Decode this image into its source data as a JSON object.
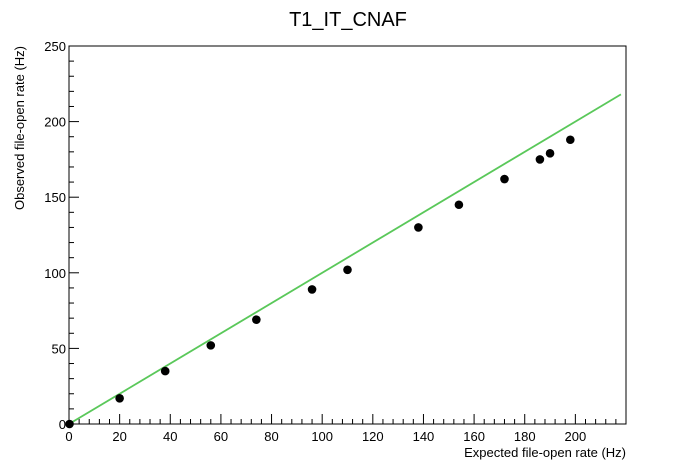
{
  "chart_data": {
    "type": "scatter",
    "title": "T1_IT_CNAF",
    "xlabel": "Expected file-open rate (Hz)",
    "ylabel": "Observed file-open rate (Hz)",
    "xlim": [
      0,
      220
    ],
    "ylim": [
      0,
      250
    ],
    "x_ticks": [
      0,
      20,
      40,
      60,
      80,
      100,
      120,
      140,
      160,
      180,
      200
    ],
    "y_ticks": [
      0,
      50,
      100,
      150,
      200,
      250
    ],
    "grid": false,
    "legend": "none",
    "points": [
      {
        "x": 0.2,
        "y": 0
      },
      {
        "x": 20,
        "y": 17
      },
      {
        "x": 38,
        "y": 35
      },
      {
        "x": 56,
        "y": 52
      },
      {
        "x": 74,
        "y": 69
      },
      {
        "x": 96,
        "y": 89
      },
      {
        "x": 110,
        "y": 102
      },
      {
        "x": 138,
        "y": 130
      },
      {
        "x": 154,
        "y": 145
      },
      {
        "x": 172,
        "y": 162
      },
      {
        "x": 186,
        "y": 175
      },
      {
        "x": 190,
        "y": 179
      },
      {
        "x": 198,
        "y": 188
      }
    ],
    "fit_line": {
      "x": [
        0,
        218
      ],
      "y": [
        0,
        218
      ],
      "color": "#5ac85a"
    },
    "marker_color": "#000000"
  }
}
